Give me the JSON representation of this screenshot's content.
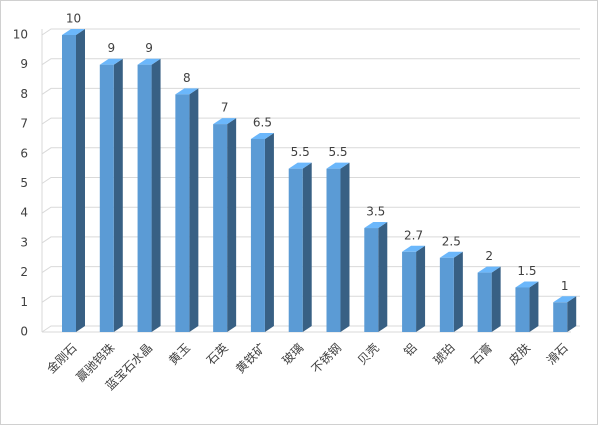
{
  "chart_data": {
    "type": "bar3d",
    "categories": [
      "金刚石",
      "赢驰钨珠",
      "蓝宝石水晶",
      "黄玉",
      "石英",
      "黄铁矿",
      "玻璃",
      "不锈钢",
      "贝壳",
      "铝",
      "琥珀",
      "石膏",
      "皮肤",
      "滑石"
    ],
    "values": [
      10,
      9,
      9,
      8,
      7,
      6.5,
      5.5,
      5.5,
      3.5,
      2.7,
      2.5,
      2,
      1.5,
      1
    ],
    "color": "#5b9bd5",
    "ylim": [
      0,
      10
    ],
    "yticks": [
      0,
      1,
      2,
      3,
      4,
      5,
      6,
      7,
      8,
      9,
      10
    ],
    "grid": true
  }
}
